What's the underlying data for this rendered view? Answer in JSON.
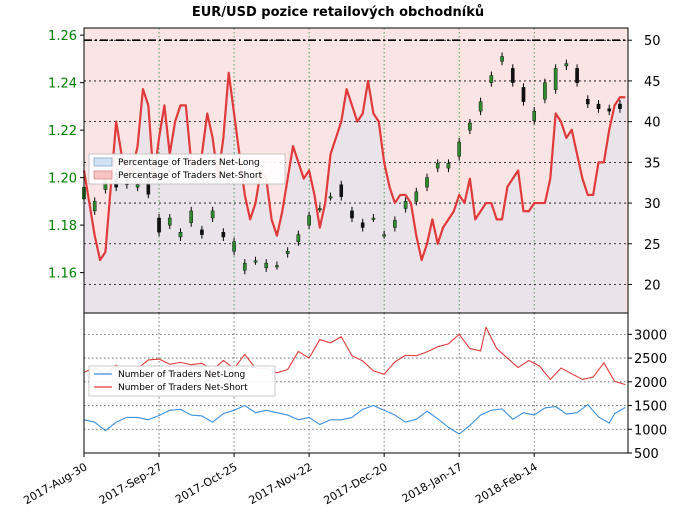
{
  "chart_data": [
    {
      "type": "candlestick_with_lines",
      "title": "EUR/USD pozice retailových obchodníků",
      "price_axis": {
        "ticks": [
          "1.16",
          "1.18",
          "1.20",
          "1.22",
          "1.24",
          "1.26"
        ],
        "range": [
          1.143,
          1.263
        ]
      },
      "percent_axis": {
        "ticks": [
          "20",
          "25",
          "30",
          "35",
          "40",
          "45",
          "50"
        ],
        "range": [
          16.5,
          51.5
        ]
      },
      "legend": [
        {
          "label": "Percentage of Traders Net-Long",
          "color": "#cfe3f5"
        },
        {
          "label": "Percentage of Traders Net-Short",
          "color": "#f7c3c3"
        }
      ],
      "net_short_pct": [
        [
          0,
          34
        ],
        [
          2,
          30
        ],
        [
          4,
          26
        ],
        [
          6,
          23
        ],
        [
          8,
          24
        ],
        [
          10,
          32
        ],
        [
          12,
          40
        ],
        [
          14,
          36
        ],
        [
          16,
          34
        ],
        [
          18,
          34
        ],
        [
          20,
          37
        ],
        [
          22,
          44
        ],
        [
          24,
          42
        ],
        [
          26,
          33
        ],
        [
          28,
          38
        ],
        [
          30,
          42
        ],
        [
          32,
          36
        ],
        [
          34,
          40
        ],
        [
          36,
          42
        ],
        [
          38,
          42
        ],
        [
          40,
          35
        ],
        [
          42,
          34
        ],
        [
          44,
          36
        ],
        [
          46,
          41
        ],
        [
          48,
          38
        ],
        [
          50,
          33
        ],
        [
          52,
          38
        ],
        [
          54,
          46
        ],
        [
          56,
          41
        ],
        [
          58,
          36
        ],
        [
          60,
          31
        ],
        [
          62,
          28
        ],
        [
          64,
          30
        ],
        [
          66,
          34
        ],
        [
          68,
          33
        ],
        [
          70,
          28
        ],
        [
          72,
          26
        ],
        [
          74,
          29
        ],
        [
          76,
          33
        ],
        [
          78,
          37
        ],
        [
          80,
          35
        ],
        [
          82,
          33
        ],
        [
          84,
          34
        ],
        [
          86,
          31
        ],
        [
          88,
          27
        ],
        [
          90,
          30
        ],
        [
          92,
          36
        ],
        [
          94,
          38
        ],
        [
          96,
          40
        ],
        [
          98,
          44
        ],
        [
          100,
          42
        ],
        [
          102,
          40
        ],
        [
          104,
          41
        ],
        [
          106,
          45
        ],
        [
          108,
          41
        ],
        [
          110,
          40
        ],
        [
          112,
          35
        ],
        [
          114,
          32
        ],
        [
          116,
          30
        ],
        [
          118,
          31
        ],
        [
          120,
          31
        ],
        [
          122,
          30
        ],
        [
          124,
          26
        ],
        [
          126,
          23
        ],
        [
          128,
          25
        ],
        [
          130,
          28
        ],
        [
          132,
          25
        ],
        [
          134,
          27
        ],
        [
          136,
          28
        ],
        [
          138,
          29
        ],
        [
          140,
          31
        ],
        [
          142,
          30
        ],
        [
          144,
          33
        ],
        [
          146,
          28
        ],
        [
          148,
          29
        ],
        [
          150,
          30
        ],
        [
          152,
          30
        ],
        [
          154,
          28
        ],
        [
          156,
          28
        ],
        [
          158,
          32
        ],
        [
          160,
          33
        ],
        [
          162,
          34
        ],
        [
          164,
          29
        ],
        [
          166,
          29
        ],
        [
          168,
          30
        ],
        [
          170,
          30
        ],
        [
          172,
          30
        ],
        [
          174,
          33
        ],
        [
          176,
          41
        ],
        [
          178,
          40
        ],
        [
          180,
          38
        ],
        [
          182,
          39
        ],
        [
          184,
          36
        ],
        [
          186,
          33
        ],
        [
          188,
          31
        ],
        [
          190,
          31
        ],
        [
          192,
          35
        ],
        [
          194,
          35
        ],
        [
          196,
          39
        ],
        [
          198,
          42
        ],
        [
          200,
          43
        ],
        [
          202,
          43
        ]
      ],
      "price_candles": [
        [
          0,
          1.191,
          1.196
        ],
        [
          4,
          1.186,
          1.19
        ],
        [
          8,
          1.195,
          1.199
        ],
        [
          12,
          1.202,
          1.196
        ],
        [
          16,
          1.202,
          1.197
        ],
        [
          20,
          1.196,
          1.197
        ],
        [
          24,
          1.2,
          1.193
        ],
        [
          28,
          1.183,
          1.177
        ],
        [
          32,
          1.18,
          1.183
        ],
        [
          36,
          1.175,
          1.177
        ],
        [
          40,
          1.181,
          1.186
        ],
        [
          44,
          1.178,
          1.176
        ],
        [
          48,
          1.183,
          1.186
        ],
        [
          52,
          1.177,
          1.175
        ],
        [
          56,
          1.169,
          1.173
        ],
        [
          60,
          1.161,
          1.164
        ],
        [
          64,
          1.165,
          1.165
        ],
        [
          68,
          1.162,
          1.164
        ],
        [
          72,
          1.163,
          1.163
        ],
        [
          76,
          1.168,
          1.169
        ],
        [
          80,
          1.173,
          1.176
        ],
        [
          84,
          1.18,
          1.184
        ],
        [
          88,
          1.187,
          1.187
        ],
        [
          92,
          1.192,
          1.192
        ],
        [
          96,
          1.197,
          1.192
        ],
        [
          100,
          1.186,
          1.183
        ],
        [
          104,
          1.181,
          1.179
        ],
        [
          108,
          1.183,
          1.183
        ],
        [
          112,
          1.176,
          1.176
        ],
        [
          116,
          1.179,
          1.182
        ],
        [
          120,
          1.187,
          1.19
        ],
        [
          124,
          1.19,
          1.194
        ],
        [
          128,
          1.196,
          1.2
        ],
        [
          132,
          1.204,
          1.206
        ],
        [
          136,
          1.204,
          1.206
        ],
        [
          140,
          1.209,
          1.215
        ],
        [
          144,
          1.22,
          1.223
        ],
        [
          148,
          1.228,
          1.232
        ],
        [
          152,
          1.24,
          1.243
        ],
        [
          156,
          1.249,
          1.251
        ],
        [
          160,
          1.246,
          1.24
        ],
        [
          164,
          1.238,
          1.232
        ],
        [
          168,
          1.224,
          1.228
        ],
        [
          172,
          1.233,
          1.24
        ],
        [
          176,
          1.237,
          1.246
        ],
        [
          180,
          1.247,
          1.248
        ],
        [
          184,
          1.246,
          1.24
        ],
        [
          188,
          1.233,
          1.231
        ],
        [
          192,
          1.231,
          1.229
        ],
        [
          196,
          1.229,
          1.228
        ],
        [
          200,
          1.231,
          1.229
        ]
      ],
      "x_range": [
        0,
        203
      ]
    },
    {
      "type": "line",
      "y_ticks": [
        "500",
        "1000",
        "1500",
        "2000",
        "2500",
        "3000"
      ],
      "ylim": [
        500,
        3450
      ],
      "legend": [
        {
          "label": "Number of Traders Net-Long",
          "color": "#3b8fdc"
        },
        {
          "label": "Number of Traders Net-Short",
          "color": "#e03a3a"
        }
      ],
      "series": [
        {
          "name": "Number of Traders Net-Short",
          "color": "#e03a3a",
          "values": [
            [
              0,
              2200
            ],
            [
              4,
              2300
            ],
            [
              8,
              2150
            ],
            [
              12,
              2350
            ],
            [
              14,
              2250
            ],
            [
              18,
              2150
            ],
            [
              20,
              2280
            ],
            [
              24,
              2460
            ],
            [
              28,
              2480
            ],
            [
              32,
              2370
            ],
            [
              36,
              2410
            ],
            [
              40,
              2360
            ],
            [
              44,
              2390
            ],
            [
              48,
              2250
            ],
            [
              52,
              2450
            ],
            [
              56,
              2280
            ],
            [
              60,
              2580
            ],
            [
              64,
              2280
            ],
            [
              68,
              2290
            ],
            [
              72,
              2190
            ],
            [
              76,
              2260
            ],
            [
              80,
              2640
            ],
            [
              84,
              2500
            ],
            [
              88,
              2890
            ],
            [
              92,
              2820
            ],
            [
              96,
              2950
            ],
            [
              100,
              2550
            ],
            [
              104,
              2440
            ],
            [
              108,
              2230
            ],
            [
              112,
              2160
            ],
            [
              116,
              2420
            ],
            [
              120,
              2560
            ],
            [
              124,
              2550
            ],
            [
              128,
              2630
            ],
            [
              132,
              2740
            ],
            [
              136,
              2800
            ],
            [
              140,
              3000
            ],
            [
              144,
              2700
            ],
            [
              148,
              2650
            ],
            [
              150,
              3150
            ],
            [
              154,
              2700
            ],
            [
              158,
              2500
            ],
            [
              162,
              2300
            ],
            [
              166,
              2450
            ],
            [
              170,
              2330
            ],
            [
              174,
              2050
            ],
            [
              178,
              2290
            ],
            [
              182,
              2170
            ],
            [
              186,
              2050
            ],
            [
              190,
              2100
            ],
            [
              194,
              2400
            ],
            [
              198,
              2010
            ],
            [
              202,
              1940
            ]
          ]
        },
        {
          "name": "Number of Traders Net-Long",
          "color": "#3b8fdc",
          "values": [
            [
              0,
              1200
            ],
            [
              4,
              1150
            ],
            [
              8,
              970
            ],
            [
              12,
              1150
            ],
            [
              16,
              1250
            ],
            [
              20,
              1250
            ],
            [
              24,
              1200
            ],
            [
              28,
              1290
            ],
            [
              32,
              1400
            ],
            [
              36,
              1420
            ],
            [
              40,
              1300
            ],
            [
              44,
              1280
            ],
            [
              48,
              1150
            ],
            [
              52,
              1330
            ],
            [
              56,
              1400
            ],
            [
              60,
              1500
            ],
            [
              64,
              1350
            ],
            [
              68,
              1400
            ],
            [
              72,
              1350
            ],
            [
              76,
              1300
            ],
            [
              80,
              1200
            ],
            [
              84,
              1250
            ],
            [
              88,
              1100
            ],
            [
              92,
              1200
            ],
            [
              96,
              1200
            ],
            [
              100,
              1250
            ],
            [
              104,
              1420
            ],
            [
              108,
              1500
            ],
            [
              112,
              1400
            ],
            [
              116,
              1300
            ],
            [
              120,
              1150
            ],
            [
              124,
              1210
            ],
            [
              128,
              1380
            ],
            [
              132,
              1220
            ],
            [
              136,
              1040
            ],
            [
              140,
              900
            ],
            [
              144,
              1080
            ],
            [
              148,
              1300
            ],
            [
              152,
              1400
            ],
            [
              156,
              1430
            ],
            [
              160,
              1210
            ],
            [
              164,
              1350
            ],
            [
              168,
              1300
            ],
            [
              172,
              1450
            ],
            [
              176,
              1480
            ],
            [
              180,
              1320
            ],
            [
              184,
              1350
            ],
            [
              188,
              1520
            ],
            [
              192,
              1260
            ],
            [
              196,
              1130
            ],
            [
              198,
              1330
            ],
            [
              202,
              1460
            ]
          ]
        }
      ]
    }
  ],
  "x_axis": {
    "ticks": [
      "2017-Aug-30",
      "2017-Sep-27",
      "2017-Oct-25",
      "2017-Nov-22",
      "2017-Dec-20",
      "2018-Jan-17",
      "2018-Feb-14"
    ],
    "range": [
      0,
      203
    ]
  }
}
